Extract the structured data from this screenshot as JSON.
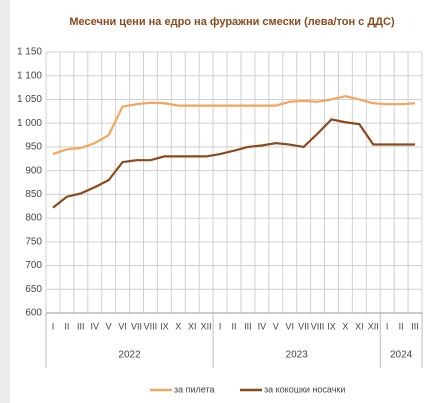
{
  "chart_data": {
    "type": "line",
    "title": "Месечни цени на едро на фуражни смески (лева/тон с ДДС)",
    "categories": [
      "I",
      "II",
      "III",
      "IV",
      "V",
      "VI",
      "VII",
      "VIII",
      "IX",
      "X",
      "XI",
      "XII",
      "I",
      "II",
      "III",
      "IV",
      "V",
      "VI",
      "VII",
      "VIII",
      "IX",
      "X",
      "XI",
      "XII",
      "I",
      "II",
      "III"
    ],
    "groups": [
      "2022",
      "2023",
      "2024"
    ],
    "series": [
      {
        "name": "за пилета",
        "color": "#f2a65e",
        "values": [
          935,
          945,
          948,
          958,
          975,
          1035,
          1040,
          1043,
          1042,
          1037,
          1037,
          1037,
          1037,
          1037,
          1037,
          1037,
          1037,
          1045,
          1047,
          1045,
          1050,
          1057,
          1050,
          1042,
          1040,
          1040,
          1042
        ]
      },
      {
        "name": "за кокошки носачки",
        "color": "#8b4a1c",
        "values": [
          822,
          845,
          852,
          865,
          880,
          918,
          922,
          922,
          930,
          930,
          930,
          930,
          935,
          942,
          950,
          953,
          958,
          955,
          950,
          978,
          1008,
          1002,
          998,
          955,
          955,
          955,
          955
        ]
      }
    ],
    "ylim": [
      600,
      1150
    ],
    "yticks": [
      600,
      650,
      700,
      750,
      800,
      850,
      900,
      950,
      {
        "value": 1000,
        "label": "1 000"
      },
      {
        "value": 1050,
        "label": "1 050"
      },
      {
        "value": 1100,
        "label": "1 100"
      },
      {
        "value": 1150,
        "label": "1 150"
      }
    ],
    "grid": true,
    "legend": "bottom"
  }
}
